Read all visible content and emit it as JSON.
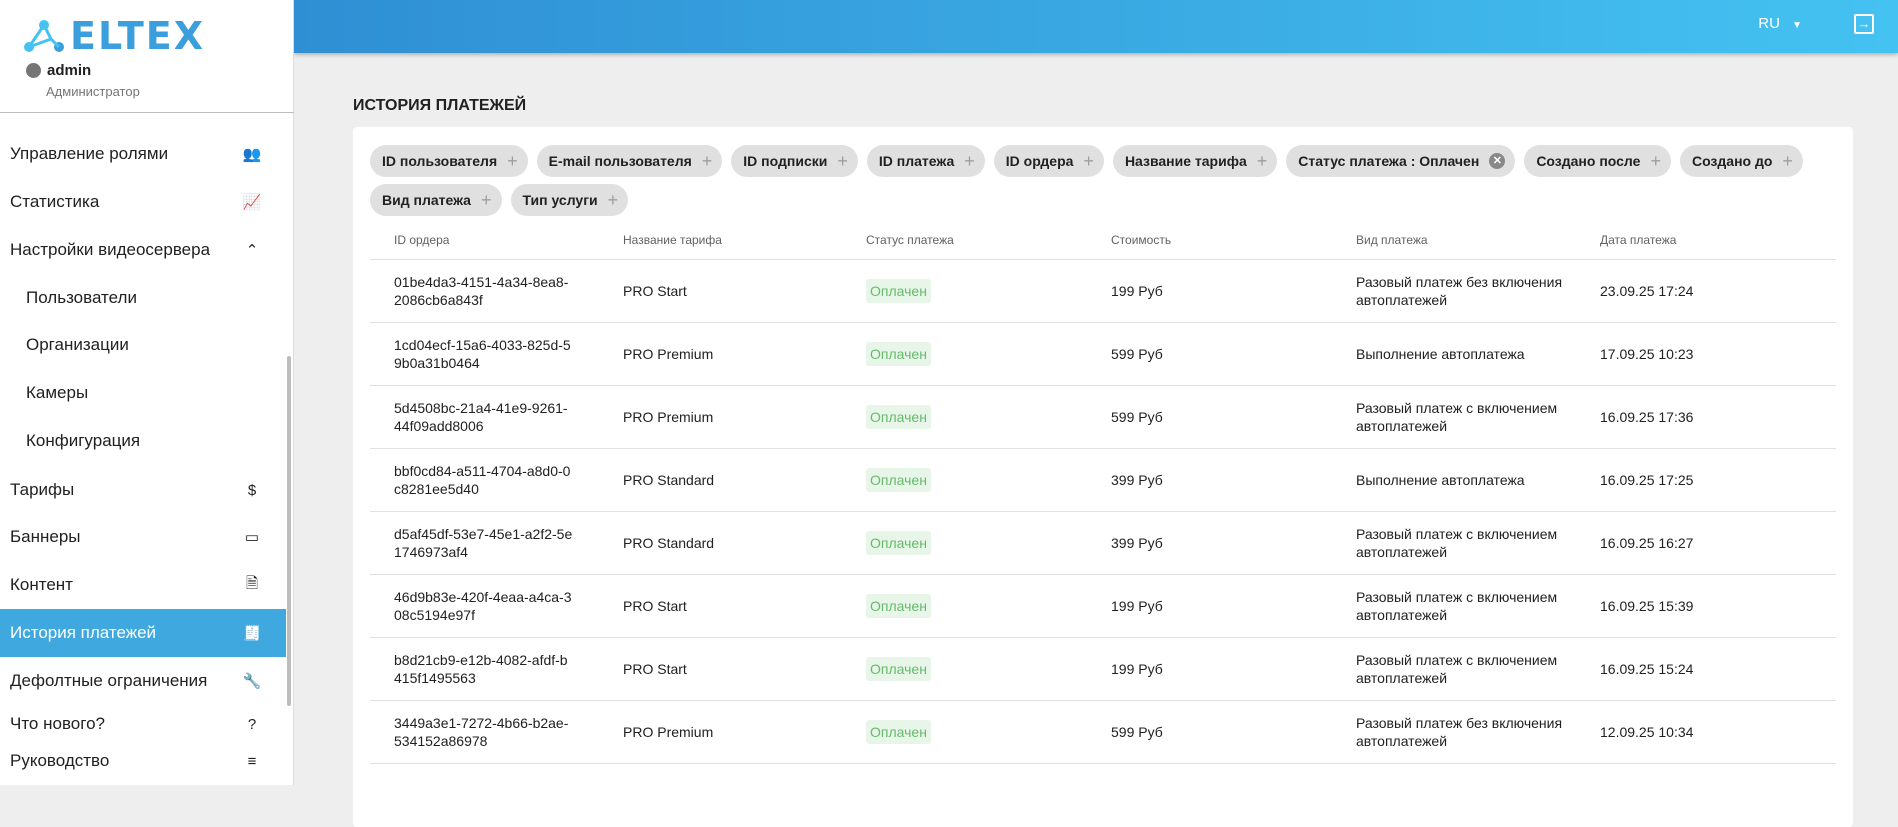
{
  "brand": {
    "logo_text": "ELTEX",
    "accent": "#3fa9df"
  },
  "user": {
    "name": "admin",
    "role": "Администратор"
  },
  "sidebar": {
    "items": [
      {
        "label": "Управление ролями",
        "icon": "people-icon",
        "glyph": "👥"
      },
      {
        "label": "Статистика",
        "icon": "chart-icon",
        "glyph": "📈"
      },
      {
        "label": "Настройки видеосервера",
        "icon": "chevron-up-icon",
        "glyph": "⌃"
      },
      {
        "label": "Пользователи",
        "sub": true
      },
      {
        "label": "Организации",
        "sub": true
      },
      {
        "label": "Камеры",
        "sub": true
      },
      {
        "label": "Конфигурация",
        "sub": true
      },
      {
        "label": "Тарифы",
        "icon": "dollar-icon",
        "glyph": "$"
      },
      {
        "label": "Баннеры",
        "icon": "window-icon",
        "glyph": "▭"
      },
      {
        "label": "Контент",
        "icon": "document-icon",
        "glyph": "🗎"
      },
      {
        "label": "История платежей",
        "icon": "receipt-icon",
        "glyph": "🧾",
        "active": true
      },
      {
        "label": "Дефолтные ограничения",
        "icon": "wrench-icon",
        "glyph": "🔧"
      },
      {
        "label": "Что нового?",
        "icon": "help-icon",
        "glyph": "?"
      },
      {
        "label": "Руководство",
        "icon": "manual-icon",
        "glyph": "≡"
      }
    ]
  },
  "header": {
    "lang": "RU"
  },
  "page": {
    "title": "ИСТОРИЯ ПЛАТЕЖЕЙ"
  },
  "filters": [
    {
      "label": "ID пользователя"
    },
    {
      "label": "E-mail пользователя"
    },
    {
      "label": "ID подписки"
    },
    {
      "label": "ID платежа"
    },
    {
      "label": "ID ордера"
    },
    {
      "label": "Название тарифа"
    },
    {
      "label": "Статус платежа : Оплачен",
      "active": true
    },
    {
      "label": "Создано после"
    },
    {
      "label": "Создано до"
    },
    {
      "label": "Вид платежа"
    },
    {
      "label": "Тип услуги"
    }
  ],
  "table": {
    "columns": [
      "ID ордера",
      "Название тарифа",
      "Статус платежа",
      "Стоимость",
      "Вид платежа",
      "Дата платежа"
    ],
    "rows": [
      [
        "01be4da3-4151-4a34-8ea8-2086cb6a843f",
        "PRO Start",
        "Оплачен",
        "199 Руб",
        "Разовый платеж без включения автоплатежей",
        "23.09.25 17:24"
      ],
      [
        "1cd04ecf-15a6-4033-825d-59b0a31b0464",
        "PRO Premium",
        "Оплачен",
        "599 Руб",
        "Выполнение автоплатежа",
        "17.09.25 10:23"
      ],
      [
        "5d4508bc-21a4-41e9-9261-44f09add8006",
        "PRO Premium",
        "Оплачен",
        "599 Руб",
        "Разовый платеж с включением автоплатежей",
        "16.09.25 17:36"
      ],
      [
        "bbf0cd84-a511-4704-a8d0-0c8281ee5d40",
        "PRO Standard",
        "Оплачен",
        "399 Руб",
        "Выполнение автоплатежа",
        "16.09.25 17:25"
      ],
      [
        "d5af45df-53e7-45e1-a2f2-5e1746973af4",
        "PRO Standard",
        "Оплачен",
        "399 Руб",
        "Разовый платеж с включением автоплатежей",
        "16.09.25 16:27"
      ],
      [
        "46d9b83e-420f-4eaa-a4ca-308c5194e97f",
        "PRO Start",
        "Оплачен",
        "199 Руб",
        "Разовый платеж с включением автоплатежей",
        "16.09.25 15:39"
      ],
      [
        "b8d21cb9-e12b-4082-afdf-b415f1495563",
        "PRO Start",
        "Оплачен",
        "199 Руб",
        "Разовый платеж с включением автоплатежей",
        "16.09.25 15:24"
      ],
      [
        "3449a3e1-7272-4b66-b2ae-534152a86978",
        "PRO Premium",
        "Оплачен",
        "599 Руб",
        "Разовый платеж без включения автоплатежей",
        "12.09.25 10:34"
      ]
    ]
  }
}
